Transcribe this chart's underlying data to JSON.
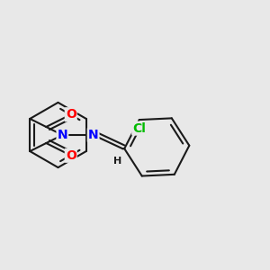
{
  "background_color": "#e8e8e8",
  "bond_color": "#1a1a1a",
  "bond_width": 1.5,
  "atom_colors": {
    "O": "#ff0000",
    "N": "#0000ff",
    "Cl": "#00bb00",
    "C": "#1a1a1a",
    "H": "#1a1a1a"
  },
  "font_size_large": 10,
  "font_size_small": 8,
  "figsize": [
    3.0,
    3.0
  ],
  "dpi": 100
}
